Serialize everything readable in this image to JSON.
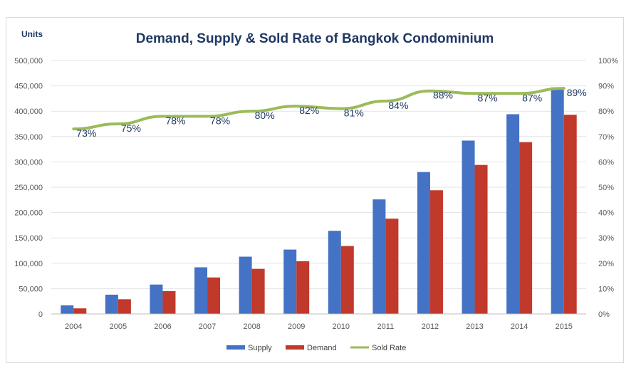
{
  "chart_data": {
    "type": "bar",
    "title": "Demand, Supply & Sold Rate of Bangkok Condominium",
    "ylabel": "Units",
    "categories": [
      "2004",
      "2005",
      "2006",
      "2007",
      "2008",
      "2009",
      "2010",
      "2011",
      "2012",
      "2013",
      "2014",
      "2015"
    ],
    "ylim": [
      0,
      500000
    ],
    "y2lim": [
      0,
      100
    ],
    "y_ticks": [
      "0",
      "50,000",
      "100,000",
      "150,000",
      "200,000",
      "250,000",
      "300,000",
      "350,000",
      "400,000",
      "450,000",
      "500,000"
    ],
    "y2_ticks": [
      "0%",
      "10%",
      "20%",
      "30%",
      "40%",
      "50%",
      "60%",
      "70%",
      "80%",
      "90%",
      "100%"
    ],
    "series": [
      {
        "name": "Supply",
        "type": "bar",
        "color": "#4472c4",
        "values": [
          17000,
          38000,
          58000,
          92000,
          113000,
          127000,
          164000,
          226000,
          280000,
          342000,
          394000,
          447000
        ]
      },
      {
        "name": "Demand",
        "type": "bar",
        "color": "#c0392b",
        "values": [
          11000,
          29000,
          45000,
          72000,
          89000,
          104000,
          134000,
          188000,
          244000,
          294000,
          339000,
          393000
        ]
      },
      {
        "name": "Sold Rate",
        "type": "line",
        "axis": "right",
        "color": "#9bbb59",
        "values": [
          73,
          75,
          78,
          78,
          80,
          82,
          81,
          84,
          88,
          87,
          87,
          89
        ],
        "labels": [
          "73%",
          "75%",
          "78%",
          "78%",
          "80%",
          "82%",
          "81%",
          "84%",
          "88%",
          "87%",
          "87%",
          "89%"
        ]
      }
    ],
    "grid": true,
    "legend": "bottom"
  }
}
